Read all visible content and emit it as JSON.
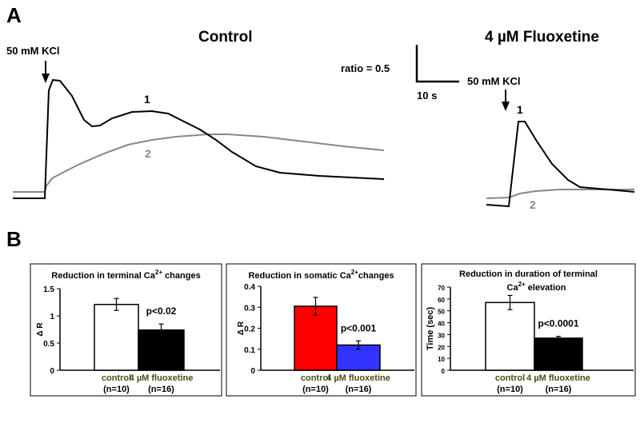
{
  "panel_a": {
    "letter": "A",
    "control_title": "Control",
    "fluoxetine_title": "4 µM Fluoxetine",
    "stimulus_label": "50 mM KCl",
    "scale_ratio_label": "ratio = 0.5",
    "scale_time_label": "10 s",
    "trace_labels": [
      "1",
      "2"
    ],
    "trace_colors": {
      "1": "#000000",
      "2": "#888888"
    }
  },
  "panel_b": {
    "letter": "B"
  },
  "chart_data": [
    {
      "type": "bar",
      "title": "Reduction in terminal Ca2+ changes",
      "title_main": "Reduction in terminal Ca",
      "title_sup": "2+",
      "title_tail": " changes",
      "ylabel": "Δ R",
      "ylim": [
        0,
        1.5
      ],
      "yticks": [
        "0",
        "0.5",
        "1",
        "1.5"
      ],
      "ytick_values": [
        0,
        0.5,
        1,
        1.5
      ],
      "categories": [
        "control",
        "4 µM fluoxetine"
      ],
      "n_labels": [
        "(n=10)",
        "(n=16)"
      ],
      "values": [
        1.21,
        0.74
      ],
      "errors": [
        0.11,
        0.11
      ],
      "colors": [
        "#ffffff",
        "#000000"
      ],
      "annotation": "p<0.02"
    },
    {
      "type": "bar",
      "title": "Reduction in somatic Ca2+changes",
      "title_main": "Reduction in somatic Ca",
      "title_sup": "2+",
      "title_tail": "changes",
      "ylabel": "Δ R",
      "ylim": [
        0,
        0.4
      ],
      "yticks": [
        "0",
        "0.1",
        "0.2",
        "0.3",
        "0.4"
      ],
      "ytick_values": [
        0,
        0.1,
        0.2,
        0.3,
        0.4
      ],
      "categories": [
        "control",
        "4 µM fluoxetine"
      ],
      "n_labels": [
        "(n=10)",
        "(n=16)"
      ],
      "values": [
        0.305,
        0.12
      ],
      "errors": [
        0.042,
        0.02
      ],
      "colors": [
        "#ff0000",
        "#3333ff"
      ],
      "annotation": "p<0.001"
    },
    {
      "type": "bar",
      "title": "Reduction in duration of terminal Ca2+ elevation",
      "title_main": "Reduction in duration of terminal",
      "title_line2_main": "Ca",
      "title_sup": "2+",
      "title_tail": " elevation",
      "ylabel": "Time (sec)",
      "ylim": [
        0,
        70
      ],
      "yticks": [
        "0",
        "10",
        "20",
        "30",
        "40",
        "50",
        "60",
        "70"
      ],
      "ytick_values": [
        0,
        10,
        20,
        30,
        40,
        50,
        60,
        70
      ],
      "categories": [
        "control",
        "4 µM fluoxetine"
      ],
      "n_labels": [
        "(n=10)",
        "(n=16)"
      ],
      "values": [
        57,
        27
      ],
      "errors": [
        6,
        1.5
      ],
      "colors": [
        "#ffffff",
        "#000000"
      ],
      "annotation": "p<0.0001"
    }
  ]
}
